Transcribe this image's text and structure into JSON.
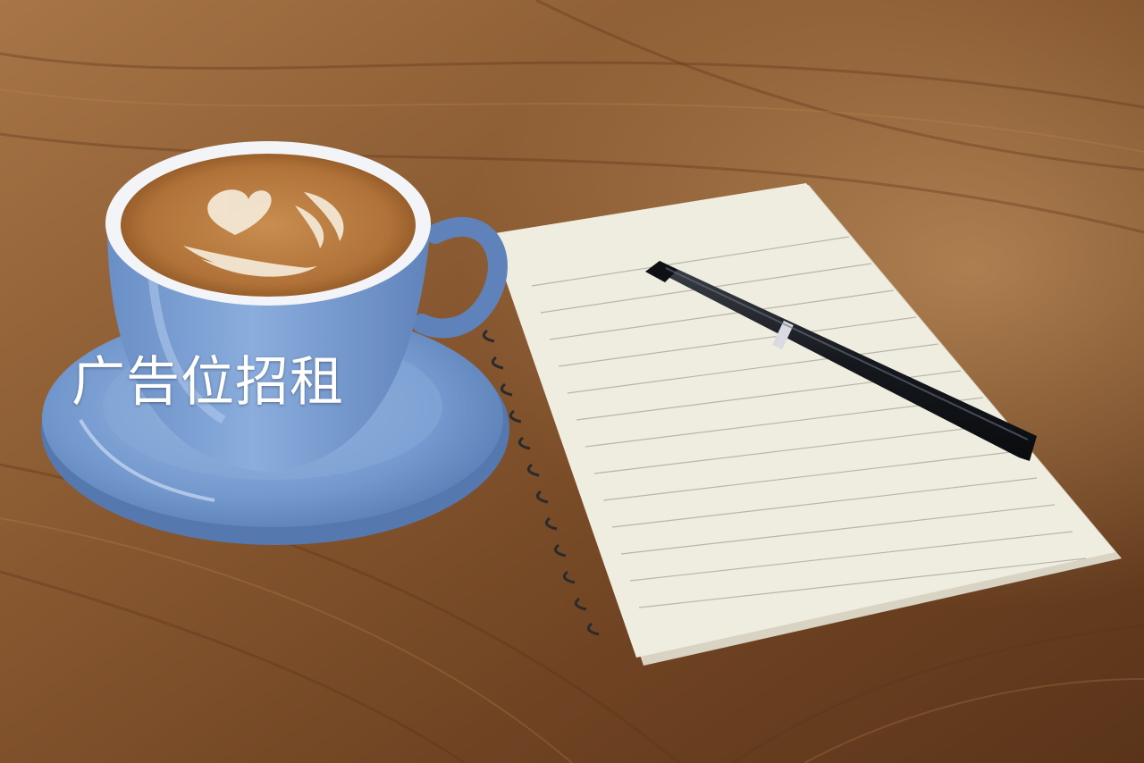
{
  "ad_banner": {
    "text": "广告位招租"
  },
  "colors": {
    "table_wood": "#8a5a32",
    "cup_blue": "#7fa2d3",
    "coffee_crema": "#b67a3e",
    "notebook_paper": "#efece0",
    "pen_black": "#15181d"
  },
  "icons": [
    "coffee-cup-icon",
    "saucer-icon",
    "notebook-icon",
    "pen-icon"
  ]
}
